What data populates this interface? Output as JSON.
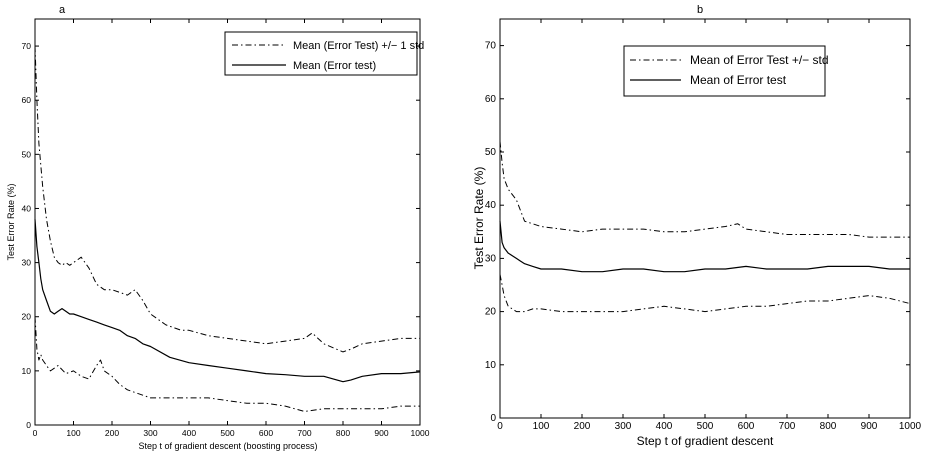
{
  "chart_data": [
    {
      "panel": "a",
      "type": "line",
      "xlabel": "Step t of gradient descent (boosting process)",
      "ylabel": "Test Error Rate (%)",
      "xlim": [
        0,
        1000
      ],
      "ylim": [
        0,
        75
      ],
      "xticks": [
        0,
        100,
        200,
        300,
        400,
        500,
        600,
        700,
        800,
        900,
        1000
      ],
      "yticks": [
        0,
        10,
        20,
        30,
        40,
        50,
        60,
        70
      ],
      "grid": false,
      "legend_position": "top-right",
      "series": [
        {
          "name": "Mean (Error Test) +/− 1 std",
          "style": "dashdot",
          "x": [
            0,
            5,
            10,
            15,
            20,
            30,
            40,
            50,
            60,
            70,
            80,
            90,
            100,
            120,
            140,
            160,
            170,
            180,
            200,
            220,
            240,
            260,
            280,
            300,
            320,
            340,
            360,
            380,
            400,
            450,
            500,
            550,
            600,
            650,
            700,
            720,
            750,
            800,
            820,
            850,
            900,
            950,
            1000
          ],
          "values": [
            70,
            60,
            52,
            48,
            44,
            38,
            34,
            31,
            30,
            29.5,
            30,
            29.5,
            30,
            31,
            29,
            26,
            25.5,
            25,
            25,
            24.5,
            24,
            25,
            23,
            20.5,
            19.5,
            18.5,
            18,
            17.5,
            17.5,
            16.5,
            16,
            15.5,
            15,
            15.5,
            16,
            17,
            15,
            13.5,
            14,
            15,
            15.5,
            16,
            16
          ]
        },
        {
          "name": "Mean (Error test)",
          "style": "solid",
          "x": [
            0,
            5,
            10,
            15,
            20,
            30,
            40,
            50,
            60,
            70,
            80,
            90,
            100,
            120,
            140,
            160,
            180,
            200,
            220,
            240,
            260,
            280,
            300,
            350,
            400,
            450,
            500,
            550,
            600,
            650,
            700,
            750,
            800,
            820,
            850,
            900,
            950,
            1000
          ],
          "values": [
            38,
            33,
            30,
            27,
            25,
            23,
            21,
            20.5,
            21,
            21.5,
            21,
            20.5,
            20.5,
            20,
            19.5,
            19,
            18.5,
            18,
            17.5,
            16.5,
            16,
            15,
            14.5,
            12.5,
            11.5,
            11,
            10.5,
            10,
            9.5,
            9.3,
            9,
            9,
            8,
            8.3,
            9,
            9.5,
            9.5,
            9.8
          ]
        },
        {
          "name": "",
          "style": "dashdot",
          "x": [
            0,
            5,
            10,
            15,
            20,
            30,
            40,
            50,
            60,
            80,
            100,
            120,
            140,
            160,
            170,
            180,
            200,
            220,
            240,
            260,
            280,
            300,
            350,
            400,
            450,
            500,
            550,
            600,
            650,
            700,
            750,
            800,
            850,
            900,
            950,
            1000
          ],
          "values": [
            20,
            14,
            12,
            13,
            12,
            11,
            10,
            10.5,
            11,
            9.5,
            10,
            9,
            8.5,
            11,
            12,
            10,
            9,
            7.5,
            6.5,
            6,
            5.5,
            5,
            5,
            5,
            5,
            4.5,
            4,
            4,
            3.5,
            2.5,
            3,
            3,
            3,
            3,
            3.5,
            3.5
          ]
        }
      ]
    },
    {
      "panel": "b",
      "type": "line",
      "xlabel": "Step t of gradient descent",
      "ylabel": "Test Error Rate (%)",
      "xlim": [
        0,
        1000
      ],
      "ylim": [
        0,
        75
      ],
      "xticks": [
        0,
        100,
        200,
        300,
        400,
        500,
        600,
        700,
        800,
        900,
        1000
      ],
      "yticks": [
        0,
        10,
        20,
        30,
        40,
        50,
        60,
        70
      ],
      "grid": false,
      "legend_position": "top-right",
      "series": [
        {
          "name": "Mean of Error Test +/− std",
          "style": "dashdot",
          "x": [
            0,
            5,
            10,
            20,
            30,
            40,
            50,
            60,
            80,
            100,
            150,
            200,
            250,
            300,
            350,
            400,
            450,
            500,
            550,
            580,
            600,
            650,
            700,
            750,
            800,
            850,
            900,
            950,
            1000
          ],
          "values": [
            52,
            48,
            45,
            43,
            42,
            41,
            39,
            37,
            36.5,
            36,
            35.5,
            35,
            35.5,
            35.5,
            35.5,
            35,
            35,
            35.5,
            36,
            36.5,
            35.5,
            35,
            34.5,
            34.5,
            34.5,
            34.5,
            34,
            34,
            34
          ]
        },
        {
          "name": "Mean of Error test",
          "style": "solid",
          "x": [
            0,
            5,
            10,
            20,
            30,
            40,
            50,
            60,
            80,
            100,
            150,
            200,
            250,
            300,
            350,
            400,
            450,
            500,
            550,
            600,
            650,
            700,
            750,
            800,
            850,
            900,
            950,
            1000
          ],
          "values": [
            37,
            33,
            32,
            31,
            30.5,
            30,
            29.5,
            29,
            28.5,
            28,
            28,
            27.5,
            27.5,
            28,
            28,
            27.5,
            27.5,
            28,
            28,
            28.5,
            28,
            28,
            28,
            28.5,
            28.5,
            28.5,
            28,
            28
          ]
        },
        {
          "name": "",
          "style": "dashdot",
          "x": [
            0,
            5,
            10,
            20,
            30,
            40,
            50,
            60,
            80,
            100,
            150,
            200,
            250,
            300,
            350,
            400,
            450,
            500,
            550,
            600,
            650,
            700,
            750,
            800,
            850,
            900,
            950,
            1000
          ],
          "values": [
            27,
            25,
            23,
            21,
            20.5,
            20,
            20,
            20,
            20.5,
            20.5,
            20,
            20,
            20,
            20,
            20.5,
            21,
            20.5,
            20,
            20.5,
            21,
            21,
            21.5,
            22,
            22,
            22.5,
            23,
            22.5,
            21.5
          ]
        }
      ]
    }
  ]
}
